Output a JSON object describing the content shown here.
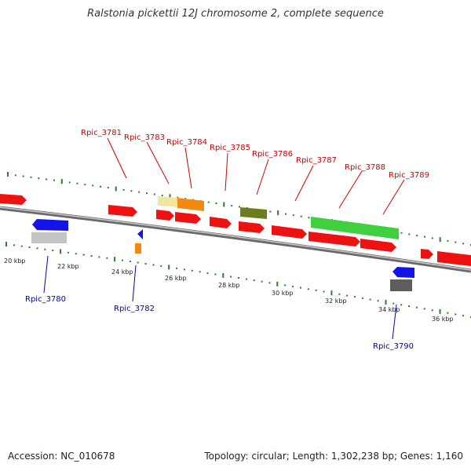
{
  "title": "Ralstonia pickettii 12J chromosome 2, complete sequence",
  "footer": {
    "accession": "Accession: NC_010678",
    "summary": "Topology: circular; Length: 1,302,238 bp; Genes: 1,160"
  },
  "colors": {
    "backbone": "#8a8a8a",
    "tick_major": "#2e7d2e",
    "tick_minor": "#2e7d2e",
    "label_top": "#cc0000",
    "label_bottom": "#0000aa",
    "kbp_label": "#222222"
  },
  "kbp_labels": [
    "20 kbp",
    "22 kbp",
    "24 kbp",
    "26 kbp",
    "28 kbp",
    "30 kbp",
    "32 kbp",
    "34 kbp",
    "36 kbp"
  ],
  "gene_labels": [
    {
      "name": "Rpic_3781",
      "strand": "top"
    },
    {
      "name": "Rpic_3783",
      "strand": "top"
    },
    {
      "name": "Rpic_3784",
      "strand": "top"
    },
    {
      "name": "Rpic_3785",
      "strand": "top"
    },
    {
      "name": "Rpic_3786",
      "strand": "top"
    },
    {
      "name": "Rpic_3787",
      "strand": "top"
    },
    {
      "name": "Rpic_3788",
      "strand": "top"
    },
    {
      "name": "Rpic_3789",
      "strand": "top"
    },
    {
      "name": "Rpic_3780",
      "strand": "bottom"
    },
    {
      "name": "Rpic_3782",
      "strand": "bottom"
    },
    {
      "name": "Rpic_3790",
      "strand": "bottom"
    }
  ]
}
